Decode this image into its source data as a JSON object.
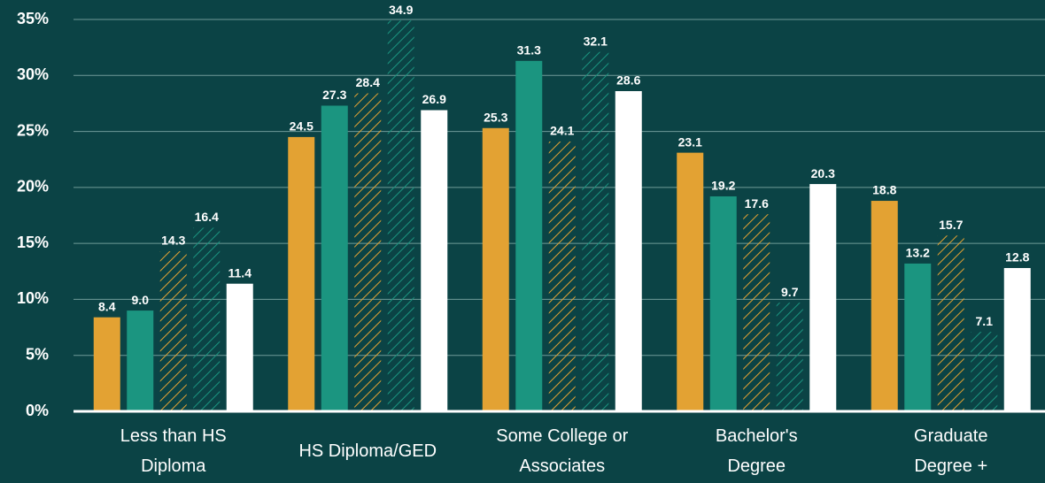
{
  "chart_data": {
    "type": "bar",
    "categories": [
      "Less than HS\nDiploma",
      "HS Diploma/GED",
      "Some College or\nAssociates",
      "Bachelor's\nDegree",
      "Graduate\nDegree +"
    ],
    "series": [
      {
        "color": "#e3a233",
        "values": [
          8.4,
          24.5,
          25.3,
          23.1,
          18.8
        ],
        "value_labels": [
          "8.4",
          "24.5",
          "25.3",
          "23.1",
          "18.8"
        ]
      },
      {
        "color": "#1b9580",
        "values": [
          9.0,
          27.3,
          31.3,
          19.2,
          13.2
        ],
        "value_labels": [
          "9.0",
          "27.3",
          "31.3",
          "19.2",
          "13.2"
        ]
      },
      {
        "color": "#e3a233",
        "hatch": true,
        "values": [
          14.3,
          28.4,
          24.1,
          17.6,
          15.7
        ],
        "value_labels": [
          "14.3",
          "28.4",
          "24.1",
          "17.6",
          "15.7"
        ]
      },
      {
        "color": "#1b9580",
        "hatch": true,
        "values": [
          16.4,
          34.9,
          32.1,
          9.7,
          7.1
        ],
        "value_labels": [
          "16.4",
          "34.9",
          "32.1",
          "9.7",
          "7.1"
        ]
      },
      {
        "color": "#ffffff",
        "values": [
          11.4,
          26.9,
          28.6,
          20.3,
          12.8
        ],
        "value_labels": [
          "11.4",
          "26.9",
          "28.6",
          "20.3",
          "12.8"
        ]
      }
    ],
    "ylim": [
      0,
      35
    ],
    "yticks": [
      {
        "value": 0,
        "label": "0%"
      },
      {
        "value": 5,
        "label": "5%"
      },
      {
        "value": 10,
        "label": "10%"
      },
      {
        "value": 15,
        "label": "15%"
      },
      {
        "value": 20,
        "label": "20%"
      },
      {
        "value": 25,
        "label": "25%"
      },
      {
        "value": 30,
        "label": "30%"
      },
      {
        "value": 35,
        "label": "35%"
      }
    ],
    "grid": true
  }
}
